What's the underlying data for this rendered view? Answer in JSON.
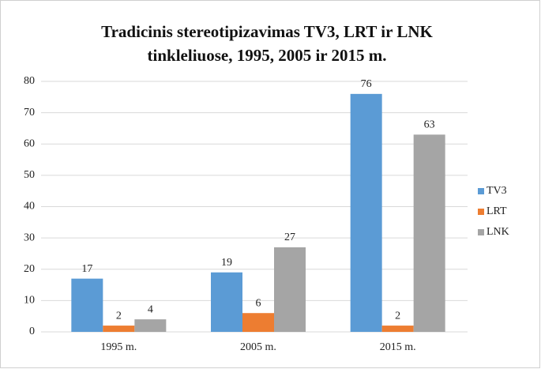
{
  "chart_data": {
    "type": "bar",
    "title": [
      "Tradicinis stereotipizavimas TV3, LRT ir LNK",
      "tinkleliuose, 1995, 2005  ir 2015 m."
    ],
    "categories": [
      "1995 m.",
      "2005 m.",
      "2015 m."
    ],
    "series": [
      {
        "name": "TV3",
        "color": "#5b9bd5",
        "values": [
          17,
          19,
          76
        ]
      },
      {
        "name": "LRT",
        "color": "#ed7d31",
        "values": [
          2,
          6,
          2
        ]
      },
      {
        "name": "LNK",
        "color": "#a5a5a5",
        "values": [
          4,
          27,
          63
        ]
      }
    ],
    "ylim": [
      0,
      80
    ],
    "yticks": [
      0,
      10,
      20,
      30,
      40,
      50,
      60,
      70,
      80
    ],
    "grid": true,
    "legend": "right"
  }
}
